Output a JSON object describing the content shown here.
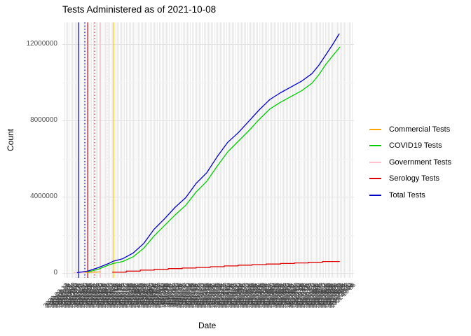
{
  "title": "Tests Administered as of 2021-10-08",
  "x_axis": {
    "title": "Date",
    "tick_labels": {
      "start": "2020-03-12",
      "end": "2021-10-08",
      "step_days": 3
    }
  },
  "y_axis": {
    "title": "Count",
    "ticks": [
      0,
      4000000,
      8000000,
      12000000
    ],
    "minor_ticks": [
      2000000,
      6000000,
      10000000
    ],
    "ylim": [
      0,
      13000000
    ]
  },
  "palette": {
    "commercial": "#FFA500",
    "covid19": "#00CC00",
    "government": "#FFC0CB",
    "serology": "#DE0000",
    "total": "#0000CD",
    "vline_gold": "#FFC125",
    "grid_major": "#e2e2e2",
    "grid_minor": "#f2f2f2",
    "grid_vertical": "#e9e9e9",
    "axis_text": "#4d4d4d"
  },
  "chart_data": {
    "type": "line",
    "title": "Tests Administered as of 2021-10-08",
    "xlabel": "Date",
    "ylabel": "Count",
    "x_range_dates": [
      "2020-03-12",
      "2021-10-08"
    ],
    "ylim": [
      0,
      13000000
    ],
    "y_ticks": [
      0,
      4000000,
      8000000,
      12000000
    ],
    "y_minor_ticks": [
      2000000,
      6000000,
      10000000
    ],
    "legend_position": "right",
    "grid": true,
    "series": [
      {
        "name": "Commercial Tests",
        "color": "#FFA500",
        "render": "line",
        "points": [
          [
            0.074,
            30000
          ],
          [
            0.095,
            35000
          ],
          [
            0.11,
            40000
          ],
          [
            0.13,
            60000
          ]
        ]
      },
      {
        "name": "COVID19 Tests",
        "color": "#00CC00",
        "render": "line",
        "points": [
          [
            0.087,
            50000
          ],
          [
            0.123,
            200000
          ],
          [
            0.159,
            420000
          ],
          [
            0.175,
            500000
          ],
          [
            0.207,
            600000
          ],
          [
            0.243,
            850000
          ],
          [
            0.279,
            1300000
          ],
          [
            0.315,
            1950000
          ],
          [
            0.351,
            2500000
          ],
          [
            0.387,
            3050000
          ],
          [
            0.423,
            3550000
          ],
          [
            0.459,
            4250000
          ],
          [
            0.495,
            4800000
          ],
          [
            0.531,
            5600000
          ],
          [
            0.567,
            6350000
          ],
          [
            0.603,
            6900000
          ],
          [
            0.639,
            7450000
          ],
          [
            0.675,
            8050000
          ],
          [
            0.712,
            8600000
          ],
          [
            0.748,
            8950000
          ],
          [
            0.784,
            9250000
          ],
          [
            0.82,
            9550000
          ],
          [
            0.856,
            9950000
          ],
          [
            0.88,
            10400000
          ],
          [
            0.904,
            10950000
          ],
          [
            0.928,
            11400000
          ],
          [
            0.952,
            11850000
          ]
        ]
      },
      {
        "name": "Government Tests",
        "color": "#FFC0CB",
        "render": "line",
        "points": [
          [
            0.038,
            20000
          ],
          [
            0.079,
            20000
          ]
        ]
      },
      {
        "name": "Serology Tests",
        "color": "#DE0000",
        "render": "step",
        "points": [
          [
            0.171,
            40000
          ],
          [
            0.219,
            100000
          ],
          [
            0.267,
            150000
          ],
          [
            0.315,
            190000
          ],
          [
            0.363,
            230000
          ],
          [
            0.411,
            260000
          ],
          [
            0.459,
            290000
          ],
          [
            0.507,
            330000
          ],
          [
            0.555,
            370000
          ],
          [
            0.603,
            410000
          ],
          [
            0.651,
            440000
          ],
          [
            0.699,
            470000
          ],
          [
            0.748,
            500000
          ],
          [
            0.796,
            530000
          ],
          [
            0.844,
            560000
          ],
          [
            0.892,
            600000
          ],
          [
            0.95,
            620000
          ]
        ]
      },
      {
        "name": "Total Tests",
        "color": "#0000CD",
        "render": "line",
        "points": [
          [
            0.05,
            20000
          ],
          [
            0.087,
            100000
          ],
          [
            0.123,
            280000
          ],
          [
            0.159,
            500000
          ],
          [
            0.175,
            620000
          ],
          [
            0.207,
            750000
          ],
          [
            0.243,
            1050000
          ],
          [
            0.279,
            1550000
          ],
          [
            0.315,
            2300000
          ],
          [
            0.351,
            2850000
          ],
          [
            0.387,
            3450000
          ],
          [
            0.423,
            3950000
          ],
          [
            0.459,
            4700000
          ],
          [
            0.495,
            5250000
          ],
          [
            0.531,
            6100000
          ],
          [
            0.567,
            6850000
          ],
          [
            0.603,
            7350000
          ],
          [
            0.639,
            7950000
          ],
          [
            0.675,
            8550000
          ],
          [
            0.712,
            9100000
          ],
          [
            0.748,
            9450000
          ],
          [
            0.784,
            9750000
          ],
          [
            0.82,
            10050000
          ],
          [
            0.856,
            10450000
          ],
          [
            0.88,
            10900000
          ],
          [
            0.904,
            11450000
          ],
          [
            0.928,
            12000000
          ],
          [
            0.95,
            12550000
          ]
        ]
      }
    ],
    "event_vlines": [
      {
        "t": 0.055,
        "color": "#0000CD",
        "style": "solid"
      },
      {
        "t": 0.077,
        "color": "#0000CD",
        "style": "dotted"
      },
      {
        "t": 0.087,
        "color": "#DE0000",
        "style": "solid"
      },
      {
        "t": 0.111,
        "color": "#DE0000",
        "style": "dotted"
      },
      {
        "t": 0.13,
        "color": "#FFB6C1",
        "style": "solid"
      },
      {
        "t": 0.154,
        "color": "#FFD0D8",
        "style": "dotted"
      },
      {
        "t": 0.176,
        "color": "#FFC125",
        "style": "solid"
      }
    ]
  }
}
